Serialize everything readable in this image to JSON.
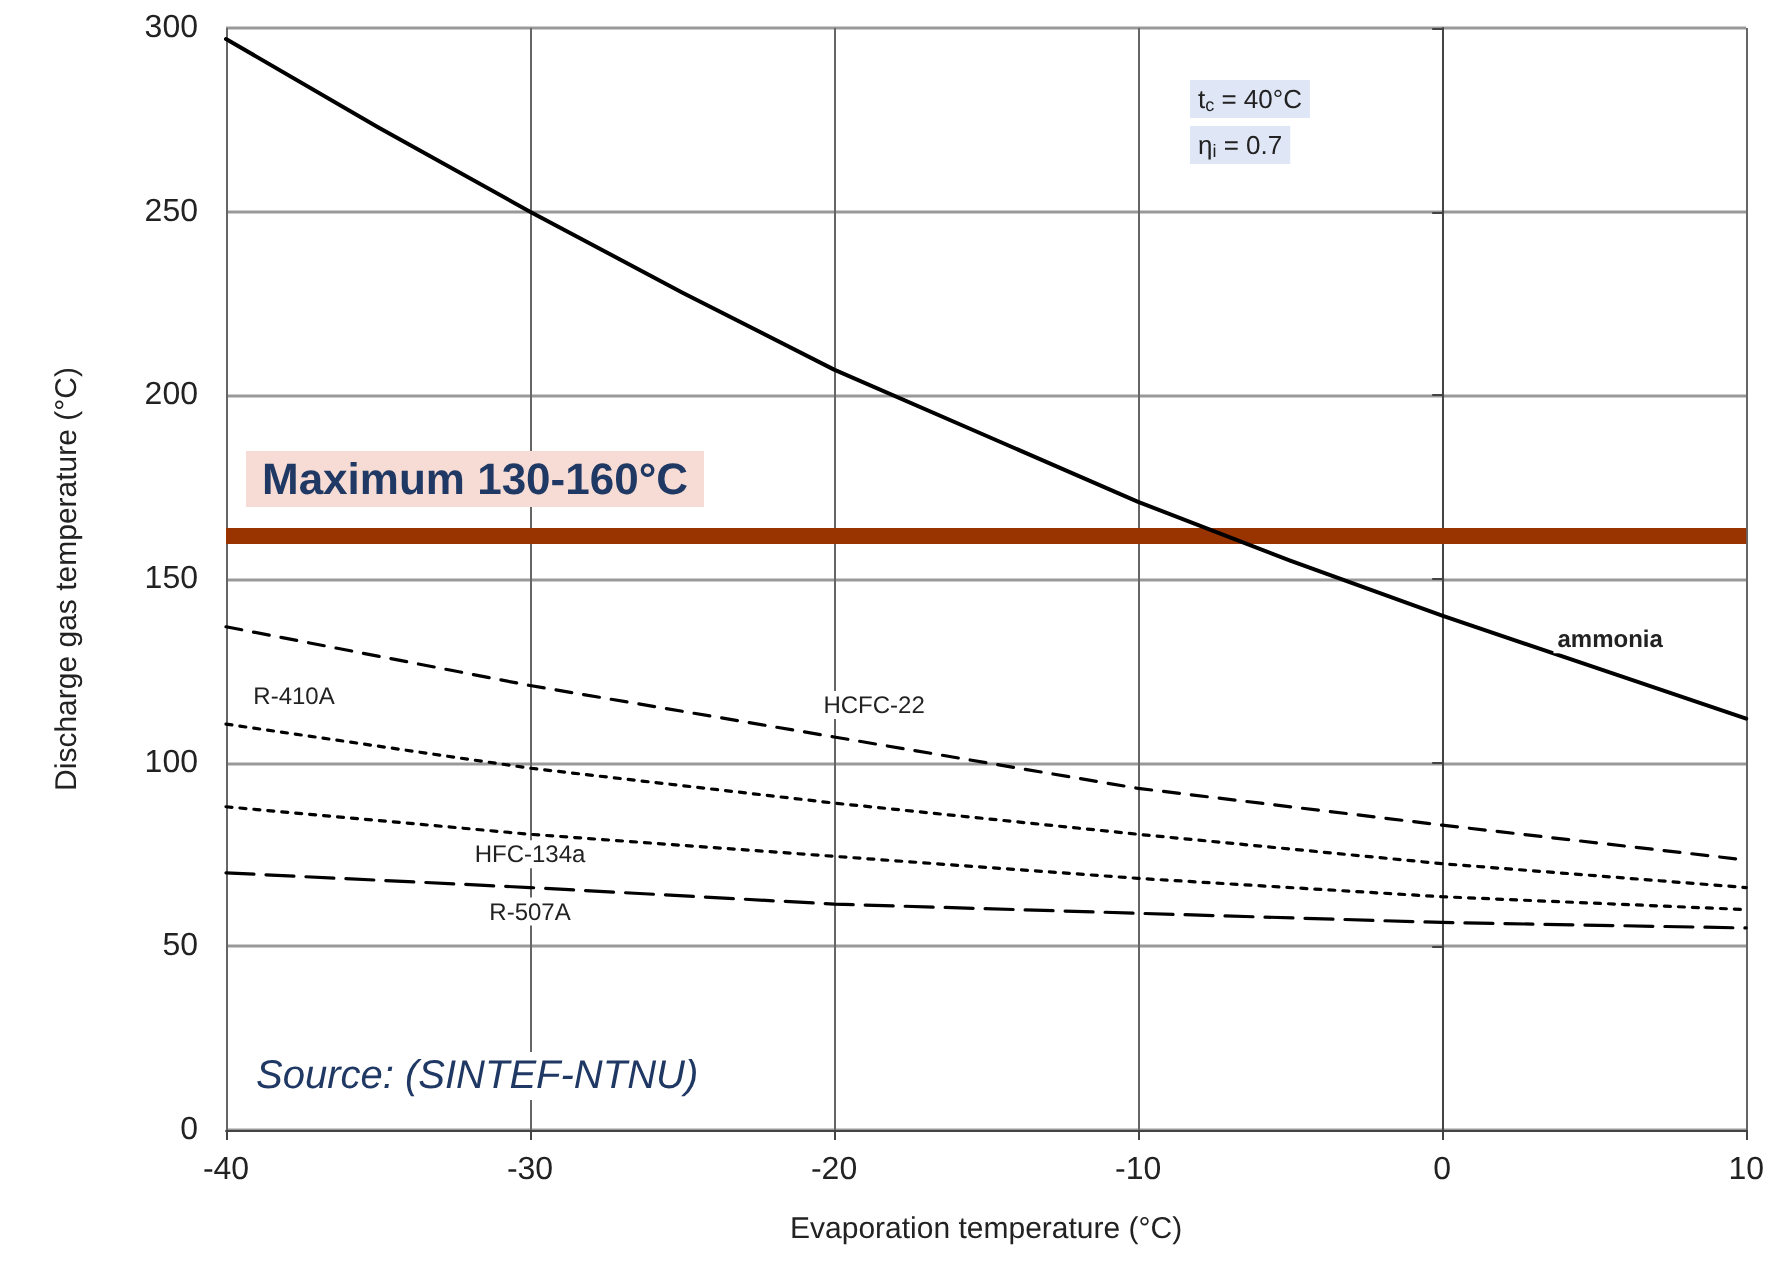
{
  "chart_data": {
    "type": "line",
    "xlabel": "Evaporation temperature (°C)",
    "ylabel": "Discharge gas temperature (°C)",
    "x": [
      -40,
      -35,
      -30,
      -25,
      -20,
      -15,
      -10,
      -5,
      0,
      5,
      10
    ],
    "series": [
      {
        "name": "ammonia",
        "color": "#000000",
        "line_style": "solid",
        "values": [
          297,
          273,
          250,
          228,
          207,
          189,
          171,
          155,
          140,
          126,
          112
        ]
      },
      {
        "name": "HCFC-22",
        "color": "#000000",
        "line_style": "dashed",
        "x": [
          -40,
          -30,
          -20,
          -10,
          0,
          10
        ],
        "values": [
          137,
          121,
          107,
          93,
          83,
          73.5
        ]
      },
      {
        "name": "R-410A",
        "color": "#000000",
        "line_style": "dashed",
        "x": [
          -40,
          -30,
          -20,
          -10,
          0,
          10
        ],
        "values": [
          110.5,
          98.5,
          89,
          80.5,
          72.5,
          66
        ]
      },
      {
        "name": "HFC-134a",
        "color": "#000000",
        "line_style": "dotted",
        "x": [
          -40,
          -30,
          -20,
          -10,
          0,
          10
        ],
        "values": [
          88,
          80.5,
          74.5,
          68.5,
          63.5,
          60
        ]
      },
      {
        "name": "R-507A",
        "color": "#000000",
        "line_style": "dashed",
        "x": [
          -40,
          -30,
          -20,
          -10,
          0,
          10
        ],
        "values": [
          70,
          66,
          61.5,
          59,
          56.5,
          55
        ]
      }
    ],
    "xlim": [
      -40,
      10
    ],
    "xticks": [
      -40,
      -30,
      -20,
      -10,
      0,
      10
    ],
    "ylim": [
      0,
      300
    ],
    "yticks": [
      0,
      50,
      100,
      150,
      200,
      250,
      300
    ],
    "grid": true,
    "legend": false,
    "marker": "none",
    "ref_lines": [
      {
        "axis": "y",
        "value": 162,
        "label": "Maximum 130-160°C",
        "color": "#993300",
        "line_style": "solid"
      }
    ],
    "annotations": [
      "t$_{c}$ = 40°C",
      "η$_{i}$ = 0.7",
      "Source: (SINTEF-NTNU)"
    ]
  }
}
